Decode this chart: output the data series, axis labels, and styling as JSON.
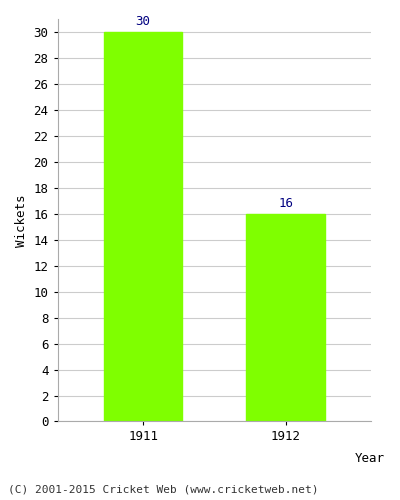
{
  "categories": [
    "1911",
    "1912"
  ],
  "values": [
    30,
    16
  ],
  "bar_color": "#7FFF00",
  "bar_edgecolor": "#7FFF00",
  "xlabel": "Year",
  "ylabel": "Wickets",
  "ylim": [
    0,
    31
  ],
  "yticks": [
    0,
    2,
    4,
    6,
    8,
    10,
    12,
    14,
    16,
    18,
    20,
    22,
    24,
    26,
    28,
    30
  ],
  "annotation_color": "#000080",
  "annotation_fontsize": 9,
  "axis_label_fontsize": 9,
  "tick_fontsize": 9,
  "footer_text": "(C) 2001-2015 Cricket Web (www.cricketweb.net)",
  "footer_fontsize": 8,
  "background_color": "#ffffff",
  "grid_color": "#cccccc",
  "bar_width": 0.55
}
